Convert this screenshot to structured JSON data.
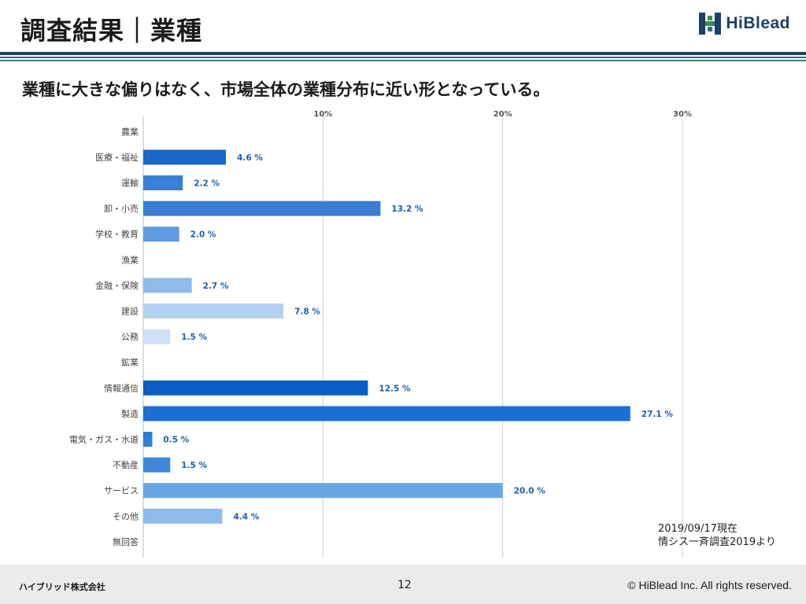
{
  "header": {
    "title": "調査結果｜業種",
    "logo_text": "HiBlead"
  },
  "subtitle": "業種に大きな偏りはなく、市場全体の業種分布に近い形となっている。",
  "source_note": {
    "line1": "2019/09/17現在",
    "line2": "情シス一斉調査2019より"
  },
  "footer": {
    "company": "ハイブリッド株式会社",
    "page": "12",
    "copyright": "© HiBlead Inc. All rights reserved."
  },
  "colors": {
    "navy": "#1e3f66",
    "blue": "#2f6a9e",
    "green": "#3d8a4f",
    "label_blue": "#1a5fb4"
  },
  "chart_data": {
    "type": "bar",
    "orientation": "horizontal",
    "xlim": [
      0,
      30
    ],
    "ticks": [
      {
        "value": 10,
        "label": "10%"
      },
      {
        "value": 20,
        "label": "20%"
      },
      {
        "value": 30,
        "label": "30%"
      }
    ],
    "grid": true,
    "categories": [
      "農業",
      "医療・福祉",
      "運輸",
      "卸・小売",
      "学校・教育",
      "漁業",
      "金融・保険",
      "建設",
      "公務",
      "鉱業",
      "情報通信",
      "製造",
      "電気・ガス・水道",
      "不動産",
      "サービス",
      "その他",
      "無回答"
    ],
    "values": [
      0,
      4.6,
      2.2,
      13.2,
      2.0,
      0,
      2.7,
      7.8,
      1.5,
      0,
      12.5,
      27.1,
      0.5,
      1.5,
      20.0,
      4.4,
      0
    ],
    "value_labels": [
      "",
      "4.6 %",
      "2.2 %",
      "13.2 %",
      "2.0 %",
      "",
      "2.7 %",
      "7.8 %",
      "1.5 %",
      "",
      "12.5 %",
      "27.1 %",
      "0.5 %",
      "1.5 %",
      "20.0 %",
      "4.4 %",
      ""
    ],
    "bar_colors": [
      "#1967c8",
      "#1967c8",
      "#3a7fd5",
      "#3a7fd5",
      "#5e9be0",
      "#5e9be0",
      "#8fbbeb",
      "#b4d2f3",
      "#cfe1f7",
      "#0b5ec4",
      "#0b5ec4",
      "#1a6ed4",
      "#2f7dd8",
      "#3e87dc",
      "#6aa6e4",
      "#8dbcec",
      "#8dbcec"
    ]
  }
}
